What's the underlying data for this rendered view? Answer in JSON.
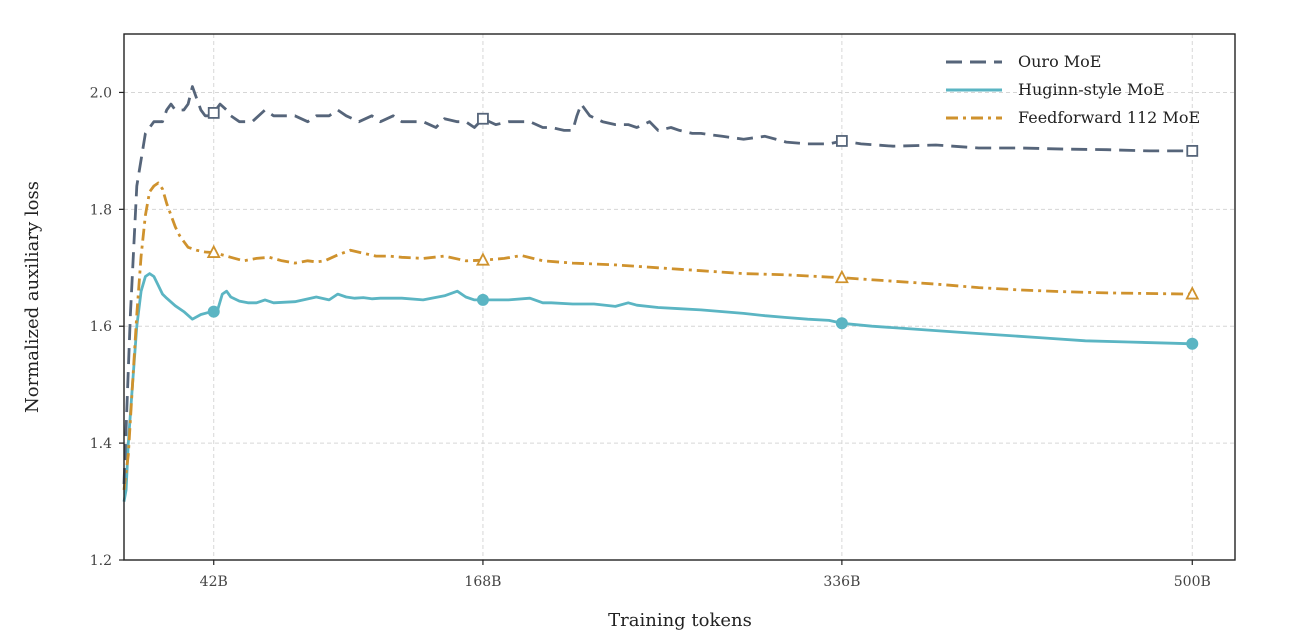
{
  "chart_data": {
    "type": "line",
    "xlabel": "Training tokens",
    "ylabel": "Normalized auxiliary loss",
    "xlim": [
      0,
      520
    ],
    "ylim": [
      1.2,
      2.1
    ],
    "grid": true,
    "legend_position": "top-right",
    "x_ticks": [
      {
        "value": 42,
        "label": "42B"
      },
      {
        "value": 168,
        "label": "168B"
      },
      {
        "value": 336,
        "label": "336B"
      },
      {
        "value": 500,
        "label": "500B"
      }
    ],
    "y_ticks": [
      {
        "value": 1.2,
        "label": "1.2"
      },
      {
        "value": 1.4,
        "label": "1.4"
      },
      {
        "value": 1.6,
        "label": "1.6"
      },
      {
        "value": 1.8,
        "label": "1.8"
      },
      {
        "value": 2.0,
        "label": "2.0"
      }
    ],
    "series": [
      {
        "name": "Ouro MoE",
        "color": "#56657a",
        "line_style": "dashed",
        "marker": "square",
        "marker_x": [
          42,
          168,
          336,
          500
        ],
        "x": [
          0,
          3,
          6,
          10,
          14,
          18,
          20,
          22,
          24,
          26,
          28,
          30,
          32,
          34,
          36,
          38,
          40,
          42,
          45,
          48,
          50,
          54,
          60,
          66,
          70,
          74,
          80,
          86,
          90,
          96,
          100,
          104,
          110,
          116,
          120,
          126,
          130,
          136,
          140,
          146,
          150,
          156,
          160,
          164,
          168,
          174,
          180,
          186,
          190,
          196,
          200,
          206,
          210,
          212,
          214,
          218,
          224,
          230,
          236,
          240,
          246,
          250,
          256,
          260,
          266,
          270,
          280,
          290,
          300,
          310,
          320,
          330,
          336,
          345,
          360,
          380,
          400,
          420,
          440,
          460,
          480,
          500
        ],
        "y": [
          1.33,
          1.62,
          1.84,
          1.93,
          1.95,
          1.95,
          1.97,
          1.98,
          1.97,
          1.97,
          1.97,
          1.98,
          2.01,
          1.99,
          1.97,
          1.96,
          1.96,
          1.965,
          1.98,
          1.97,
          1.96,
          1.95,
          1.95,
          1.97,
          1.96,
          1.96,
          1.96,
          1.95,
          1.96,
          1.96,
          1.97,
          1.96,
          1.95,
          1.96,
          1.95,
          1.96,
          1.95,
          1.95,
          1.95,
          1.94,
          1.955,
          1.95,
          1.95,
          1.94,
          1.955,
          1.945,
          1.95,
          1.95,
          1.95,
          1.94,
          1.94,
          1.935,
          1.935,
          1.96,
          1.98,
          1.96,
          1.95,
          1.945,
          1.945,
          1.94,
          1.95,
          1.935,
          1.94,
          1.935,
          1.93,
          1.93,
          1.925,
          1.92,
          1.925,
          1.915,
          1.912,
          1.912,
          1.917,
          1.912,
          1.908,
          1.91,
          1.905,
          1.905,
          1.903,
          1.902,
          1.9,
          1.9
        ]
      },
      {
        "name": "Huginn-style MoE",
        "color": "#5bb5c3",
        "line_style": "solid",
        "marker": "circle",
        "marker_x": [
          42,
          168,
          336,
          500
        ],
        "x": [
          0,
          1,
          2,
          4,
          6,
          8,
          10,
          12,
          14,
          16,
          18,
          20,
          24,
          28,
          32,
          36,
          40,
          42,
          44,
          46,
          48,
          50,
          54,
          58,
          62,
          66,
          70,
          80,
          90,
          96,
          100,
          104,
          108,
          112,
          116,
          120,
          130,
          140,
          150,
          156,
          160,
          164,
          168,
          180,
          190,
          196,
          200,
          210,
          220,
          230,
          236,
          240,
          250,
          260,
          270,
          280,
          290,
          300,
          310,
          320,
          330,
          336,
          350,
          370,
          390,
          410,
          430,
          450,
          470,
          490,
          500
        ],
        "y": [
          1.3,
          1.32,
          1.4,
          1.5,
          1.6,
          1.66,
          1.685,
          1.69,
          1.685,
          1.67,
          1.655,
          1.648,
          1.635,
          1.625,
          1.612,
          1.62,
          1.624,
          1.625,
          1.63,
          1.655,
          1.66,
          1.65,
          1.643,
          1.64,
          1.64,
          1.645,
          1.64,
          1.642,
          1.65,
          1.645,
          1.655,
          1.65,
          1.648,
          1.649,
          1.647,
          1.648,
          1.648,
          1.645,
          1.652,
          1.66,
          1.65,
          1.645,
          1.645,
          1.645,
          1.648,
          1.64,
          1.64,
          1.638,
          1.638,
          1.634,
          1.64,
          1.636,
          1.632,
          1.63,
          1.628,
          1.625,
          1.622,
          1.618,
          1.615,
          1.612,
          1.61,
          1.605,
          1.6,
          1.595,
          1.59,
          1.585,
          1.58,
          1.575,
          1.573,
          1.571,
          1.57
        ]
      },
      {
        "name": "Feedforward 112 MoE",
        "color": "#cf922d",
        "line_style": "dashdot",
        "marker": "triangle",
        "marker_x": [
          42,
          168,
          336,
          500
        ],
        "x": [
          0,
          2,
          4,
          6,
          8,
          10,
          12,
          14,
          16,
          18,
          20,
          22,
          24,
          26,
          28,
          30,
          34,
          38,
          42,
          46,
          50,
          56,
          62,
          68,
          74,
          80,
          86,
          90,
          94,
          100,
          106,
          112,
          118,
          124,
          130,
          140,
          150,
          160,
          168,
          178,
          186,
          196,
          210,
          230,
          250,
          270,
          290,
          310,
          330,
          336,
          360,
          380,
          400,
          420,
          440,
          460,
          480,
          500
        ],
        "y": [
          1.32,
          1.38,
          1.5,
          1.62,
          1.72,
          1.79,
          1.83,
          1.84,
          1.845,
          1.835,
          1.81,
          1.79,
          1.77,
          1.755,
          1.745,
          1.735,
          1.73,
          1.727,
          1.726,
          1.722,
          1.718,
          1.712,
          1.716,
          1.718,
          1.712,
          1.708,
          1.712,
          1.71,
          1.712,
          1.722,
          1.73,
          1.725,
          1.72,
          1.72,
          1.718,
          1.716,
          1.72,
          1.712,
          1.713,
          1.716,
          1.721,
          1.712,
          1.708,
          1.705,
          1.7,
          1.695,
          1.69,
          1.688,
          1.684,
          1.683,
          1.677,
          1.672,
          1.666,
          1.662,
          1.659,
          1.657,
          1.656,
          1.655
        ]
      }
    ]
  }
}
